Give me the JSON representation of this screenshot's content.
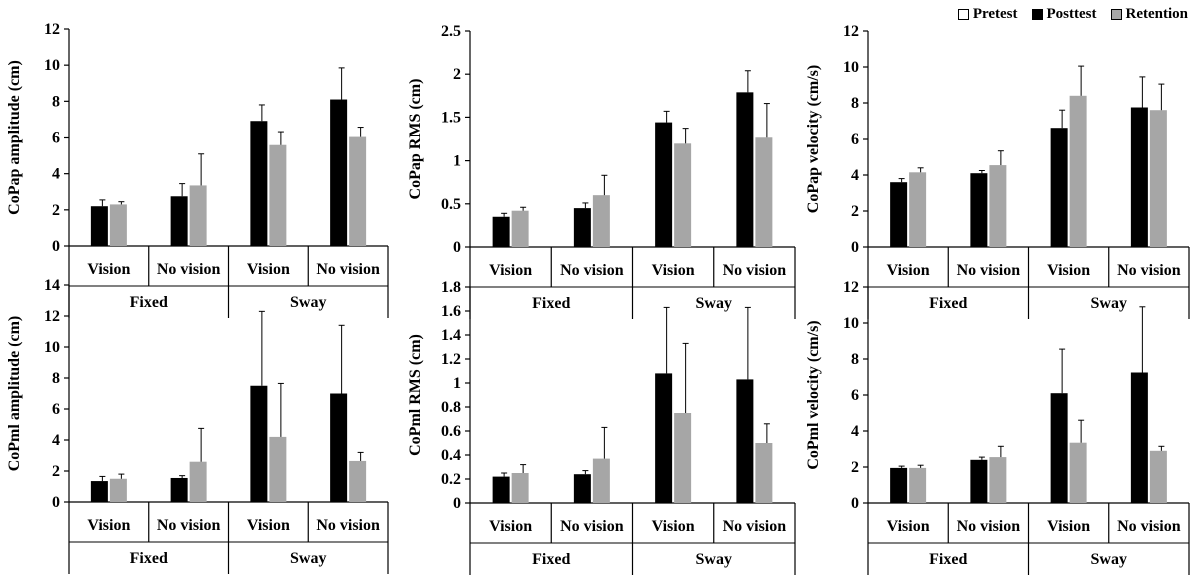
{
  "chart_data": [
    {
      "type": "bar",
      "ylabel": "CoPap amplitude  (cm)",
      "ylim": [
        0,
        12
      ],
      "yticks": [
        0,
        2,
        4,
        6,
        8,
        10,
        12
      ],
      "categories": [
        "Vision",
        "No vision",
        "Vision",
        "No vision"
      ],
      "groups": [
        {
          "label": "Fixed",
          "span": 2
        },
        {
          "label": "Sway",
          "span": 2
        }
      ],
      "series": [
        {
          "name": "Pretest",
          "values": [
            0,
            0,
            0,
            0
          ],
          "errors": [
            0,
            0,
            0,
            0
          ]
        },
        {
          "name": "Posttest",
          "values": [
            2.2,
            2.75,
            6.9,
            8.1
          ],
          "errors": [
            0.35,
            0.7,
            0.9,
            1.75
          ]
        },
        {
          "name": "Retention",
          "values": [
            2.3,
            3.35,
            5.6,
            6.05
          ],
          "errors": [
            0.15,
            1.75,
            0.7,
            0.5
          ]
        }
      ]
    },
    {
      "type": "bar",
      "ylabel": "CoPap RMS (cm)",
      "ylim": [
        0,
        2.5
      ],
      "yticks": [
        0,
        0.5,
        1,
        1.5,
        2,
        2.5
      ],
      "categories": [
        "Vision",
        "No vision",
        "Vision",
        "No vision"
      ],
      "groups": [
        {
          "label": "Fixed",
          "span": 2
        },
        {
          "label": "Sway",
          "span": 2
        }
      ],
      "series": [
        {
          "name": "Pretest",
          "values": [
            0,
            0,
            0,
            0
          ],
          "errors": [
            0,
            0,
            0,
            0
          ]
        },
        {
          "name": "Posttest",
          "values": [
            0.35,
            0.45,
            1.44,
            1.79
          ],
          "errors": [
            0.04,
            0.06,
            0.13,
            0.25
          ]
        },
        {
          "name": "Retention",
          "values": [
            0.42,
            0.6,
            1.2,
            1.27
          ],
          "errors": [
            0.04,
            0.23,
            0.17,
            0.39
          ]
        }
      ]
    },
    {
      "type": "bar",
      "ylabel": "CoPap velocity (cm/s)",
      "ylim": [
        0,
        12
      ],
      "yticks": [
        0,
        2,
        4,
        6,
        8,
        10,
        12
      ],
      "categories": [
        "Vision",
        "No vision",
        "Vision",
        "No vision"
      ],
      "groups": [
        {
          "label": "Fixed",
          "span": 2
        },
        {
          "label": "Sway",
          "span": 2
        }
      ],
      "series": [
        {
          "name": "Pretest",
          "values": [
            0,
            0,
            0,
            0
          ],
          "errors": [
            0,
            0,
            0,
            0
          ]
        },
        {
          "name": "Posttest",
          "values": [
            3.6,
            4.1,
            6.6,
            7.75
          ],
          "errors": [
            0.2,
            0.15,
            1.0,
            1.7
          ]
        },
        {
          "name": "Retention",
          "values": [
            4.15,
            4.55,
            8.4,
            7.6
          ],
          "errors": [
            0.25,
            0.8,
            1.65,
            1.45
          ]
        }
      ]
    },
    {
      "type": "bar",
      "ylabel": "CoPml amplitude  (cm)",
      "ylim": [
        0,
        14
      ],
      "yticks": [
        0,
        2,
        4,
        6,
        8,
        10,
        12,
        14
      ],
      "categories": [
        "Vision",
        "No vision",
        "Vision",
        "No vision"
      ],
      "groups": [
        {
          "label": "Fixed",
          "span": 2
        },
        {
          "label": "Sway",
          "span": 2
        }
      ],
      "series": [
        {
          "name": "Pretest",
          "values": [
            0,
            0,
            0,
            0
          ],
          "errors": [
            0,
            0,
            0,
            0
          ]
        },
        {
          "name": "Posttest",
          "values": [
            1.35,
            1.55,
            7.5,
            7.0
          ],
          "errors": [
            0.3,
            0.15,
            4.8,
            4.4
          ]
        },
        {
          "name": "Retention",
          "values": [
            1.5,
            2.6,
            4.2,
            2.65
          ],
          "errors": [
            0.3,
            2.15,
            3.45,
            0.55
          ]
        }
      ]
    },
    {
      "type": "bar",
      "ylabel": "CoPml RMS (cm)",
      "ylim": [
        0,
        1.8
      ],
      "yticks": [
        0,
        0.2,
        0.4,
        0.6,
        0.8,
        1,
        1.2,
        1.4,
        1.6,
        1.8
      ],
      "categories": [
        "Vision",
        "No vision",
        "Vision",
        "No vision"
      ],
      "groups": [
        {
          "label": "Fixed",
          "span": 2
        },
        {
          "label": "Sway",
          "span": 2
        }
      ],
      "series": [
        {
          "name": "Pretest",
          "values": [
            0,
            0,
            0,
            0
          ],
          "errors": [
            0,
            0,
            0,
            0
          ]
        },
        {
          "name": "Posttest",
          "values": [
            0.22,
            0.24,
            1.08,
            1.03
          ],
          "errors": [
            0.03,
            0.03,
            0.55,
            0.6
          ]
        },
        {
          "name": "Retention",
          "values": [
            0.25,
            0.37,
            0.75,
            0.5
          ],
          "errors": [
            0.07,
            0.26,
            0.58,
            0.16
          ]
        }
      ]
    },
    {
      "type": "bar",
      "ylabel": "CoPml velocity (cm/s)",
      "ylim": [
        0,
        12
      ],
      "yticks": [
        0,
        2,
        4,
        6,
        8,
        10,
        12
      ],
      "categories": [
        "Vision",
        "No vision",
        "Vision",
        "No vision"
      ],
      "groups": [
        {
          "label": "Fixed",
          "span": 2
        },
        {
          "label": "Sway",
          "span": 2
        }
      ],
      "series": [
        {
          "name": "Pretest",
          "values": [
            0,
            0,
            0,
            0
          ],
          "errors": [
            0,
            0,
            0,
            0
          ]
        },
        {
          "name": "Posttest",
          "values": [
            1.95,
            2.4,
            6.1,
            7.25
          ],
          "errors": [
            0.1,
            0.15,
            2.45,
            3.65
          ]
        },
        {
          "name": "Retention",
          "values": [
            1.95,
            2.55,
            3.35,
            2.9
          ],
          "errors": [
            0.15,
            0.6,
            1.25,
            0.25
          ]
        }
      ]
    }
  ],
  "legend": {
    "items": [
      {
        "label": "Pretest",
        "color": "#ffffff"
      },
      {
        "label": "Posttest",
        "color": "#000000"
      },
      {
        "label": "Retention",
        "color": "#a6a6a6"
      }
    ]
  },
  "colors": {
    "pretest": "#ffffff",
    "posttest": "#000000",
    "retention": "#a6a6a6"
  }
}
